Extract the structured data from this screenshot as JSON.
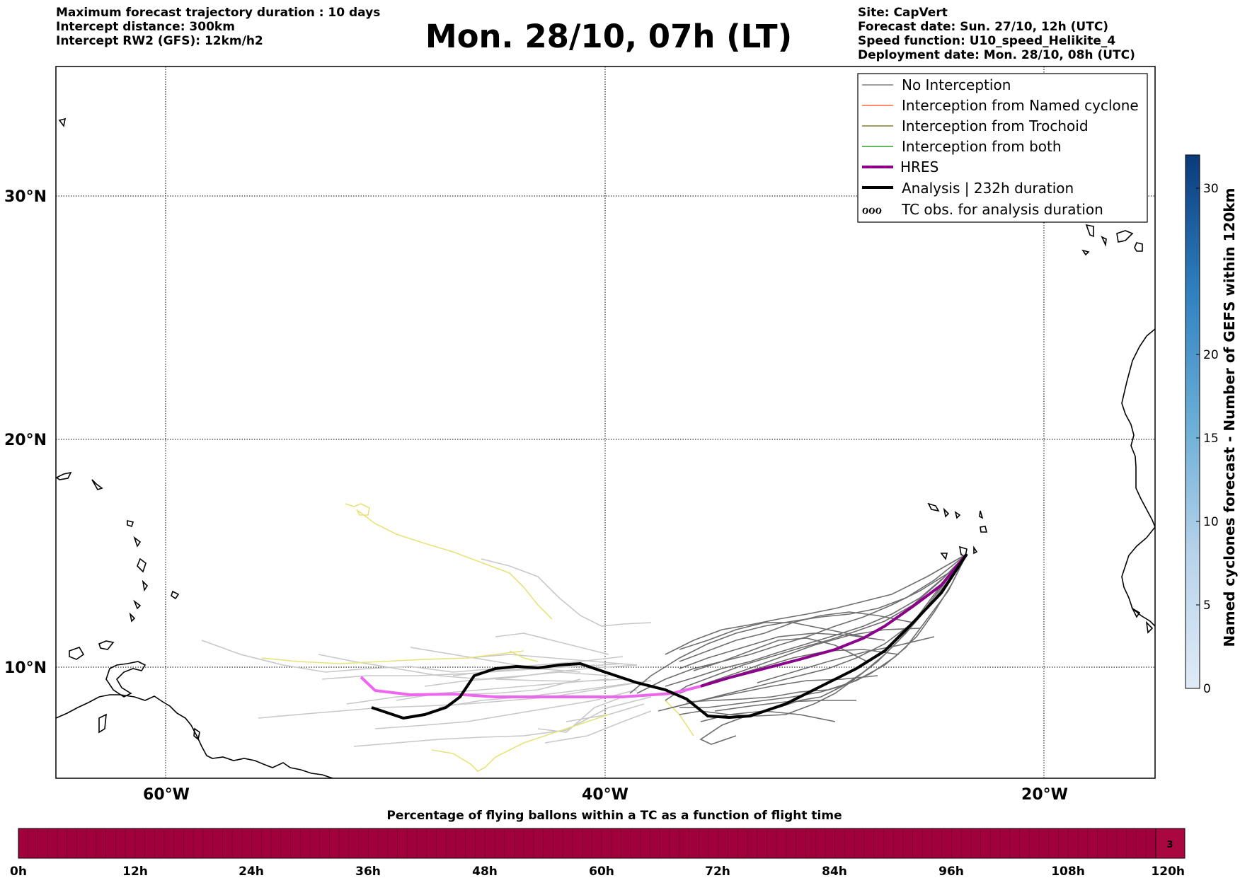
{
  "header": {
    "left": [
      "Maximum forecast trajectory duration : 10 days",
      "Intercept distance: 300km",
      "Intercept RW2 (GFS):  12km/h2"
    ],
    "title": "Mon. 28/10, 07h (LT)",
    "right": [
      "Site: CapVert",
      "Forecast date: Sun. 27/10, 12h (UTC)",
      "Speed function: U10_speed_Helikite_4",
      "Deployment date: Mon. 28/10, 08h (UTC)"
    ]
  },
  "map": {
    "lon_ticks": [
      "60°W",
      "40°W",
      "20°W"
    ],
    "lat_ticks": [
      "30°N",
      "20°N",
      "10°N"
    ],
    "grid": true,
    "extent": {
      "lon": [
        -65,
        -15
      ],
      "lat": [
        5.5,
        34.8
      ]
    }
  },
  "legend": {
    "placement": "top-right",
    "items": [
      {
        "label": "No Interception",
        "color": "#808080"
      },
      {
        "label": "Interception from Named cyclone",
        "color": "#ff6a3d"
      },
      {
        "label": "Interception from Trochoid",
        "color": "#8b7d2b"
      },
      {
        "label": "Interception from both",
        "color": "#2ca02c"
      },
      {
        "label": "HRES",
        "color": "#8b008b"
      },
      {
        "label": "Analysis | 232h duration",
        "color": "#000000"
      },
      {
        "label": "TC obs. for analysis duration",
        "color": "#000000"
      }
    ],
    "tc_symbol": "ℴℴℴ"
  },
  "colorbar": {
    "label": "Named cyclones forecast - Number of GEFS within 120km",
    "ticks": [
      "0",
      "5",
      "10",
      "15",
      "20",
      "30"
    ],
    "range": [
      0,
      32
    ]
  },
  "bottom_bar": {
    "title": "Percentage of flying ballons within a TC as a function of flight time",
    "ticks": [
      "0h",
      "12h",
      "24h",
      "36h",
      "48h",
      "60h",
      "72h",
      "84h",
      "96h",
      "108h",
      "120h"
    ],
    "fill_color": "#a0003c",
    "last_cell_value": "3"
  },
  "chart_data": {
    "type": "line",
    "title": "Mon. 28/10, 07h (LT)",
    "series": [
      {
        "name": "HRES",
        "color": "#8b008b",
        "lonlat": [
          [
            -23.4,
            14.9
          ],
          [
            -25,
            13.6
          ],
          [
            -27,
            12.3
          ],
          [
            -29,
            11.1
          ],
          [
            -30.5,
            10.5
          ],
          [
            -32,
            10.1
          ],
          [
            -34,
            9.8
          ],
          [
            -36,
            9.5
          ],
          [
            -37.2,
            9.2
          ],
          [
            -38.5,
            8.9
          ],
          [
            -41,
            8.7
          ],
          [
            -44,
            8.7
          ],
          [
            -47,
            8.7
          ],
          [
            -49,
            8.9
          ],
          [
            -50.2,
            9.5
          ]
        ]
      },
      {
        "name": "Analysis | 232h duration",
        "color": "#000000",
        "lonlat": [
          [
            -23.4,
            14.9
          ],
          [
            -25,
            13.2
          ],
          [
            -27,
            11.8
          ],
          [
            -29,
            10.5
          ],
          [
            -30.5,
            9.6
          ],
          [
            -32,
            9.0
          ],
          [
            -33.5,
            8.3
          ],
          [
            -34.7,
            7.7
          ],
          [
            -35.6,
            7.7
          ],
          [
            -36.5,
            8.4
          ],
          [
            -38,
            8.9
          ],
          [
            -39.5,
            9.3
          ],
          [
            -40.8,
            9.6
          ],
          [
            -42,
            9.6
          ],
          [
            -43.3,
            9.5
          ],
          [
            -44.8,
            9.5
          ],
          [
            -45.8,
            8.6
          ],
          [
            -46.8,
            8.0
          ],
          [
            -48,
            7.8
          ],
          [
            -48.8,
            7.9
          ],
          [
            -50.3,
            8.2
          ]
        ]
      }
    ]
  }
}
